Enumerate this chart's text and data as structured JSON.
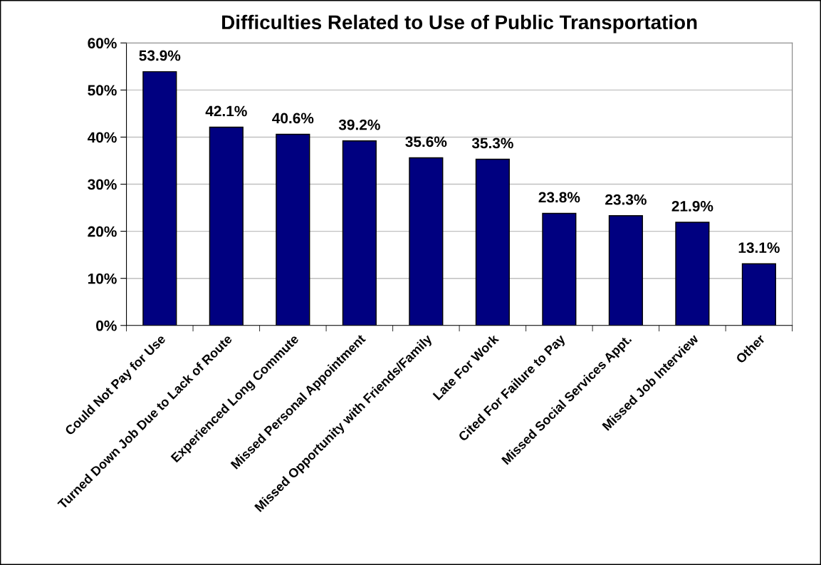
{
  "chart_data": {
    "type": "bar",
    "title": "Difficulties Related to Use of Public Transportation",
    "categories": [
      "Could Not Pay for Use",
      "Turned Down Job Due to Lack of Route",
      "Experienced Long Commute",
      "Missed Personal Appointment",
      "Missed Opportunity with Friends/Family",
      "Late For Work",
      "Cited For Failure to Pay",
      "Missed Social Services Appt.",
      "Missed Job Interview",
      "Other"
    ],
    "values": [
      53.9,
      42.1,
      40.6,
      39.2,
      35.6,
      35.3,
      23.8,
      23.3,
      21.9,
      13.1
    ],
    "value_labels": [
      "53.9%",
      "42.1%",
      "40.6%",
      "39.2%",
      "35.6%",
      "35.3%",
      "23.8%",
      "23.3%",
      "21.9%",
      "13.1%"
    ],
    "color": "#000080",
    "ylim": [
      0,
      60
    ],
    "yticks": [
      {
        "value": 0,
        "label": "0%"
      },
      {
        "value": 10,
        "label": "10%"
      },
      {
        "value": 20,
        "label": "20%"
      },
      {
        "value": 30,
        "label": "30%"
      },
      {
        "value": 40,
        "label": "40%"
      },
      {
        "value": 50,
        "label": "50%"
      },
      {
        "value": 60,
        "label": "60%"
      }
    ],
    "grid": "y"
  }
}
